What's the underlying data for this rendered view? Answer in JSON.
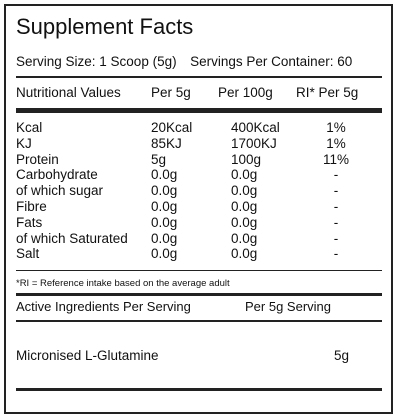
{
  "title": "Supplement Facts",
  "serving_size": "Serving Size: 1 Scoop (5g)",
  "servings_per_container": "Servings Per Container: 60",
  "nutrition_header": {
    "label": "Nutritional Values",
    "per_5g": "Per 5g",
    "per_100g": "Per 100g",
    "ri": "RI* Per 5g"
  },
  "nutrition_rows": [
    {
      "name": "Kcal",
      "per_5g": "20Kcal",
      "per_100g": "400Kcal",
      "ri": "1%"
    },
    {
      "name": "KJ",
      "per_5g": "85KJ",
      "per_100g": "1700KJ",
      "ri": "1%"
    },
    {
      "name": "Protein",
      "per_5g": "5g",
      "per_100g": "100g",
      "ri": "11%"
    },
    {
      "name": "Carbohydrate",
      "per_5g": "0.0g",
      "per_100g": "0.0g",
      "ri": "-"
    },
    {
      "name": "of which sugar",
      "per_5g": "0.0g",
      "per_100g": "0.0g",
      "ri": "-"
    },
    {
      "name": "Fibre",
      "per_5g": "0.0g",
      "per_100g": "0.0g",
      "ri": "-"
    },
    {
      "name": "Fats",
      "per_5g": "0.0g",
      "per_100g": "0.0g",
      "ri": "-"
    },
    {
      "name": "of which Saturated",
      "per_5g": "0.0g",
      "per_100g": "0.0g",
      "ri": "-"
    },
    {
      "name": "Salt",
      "per_5g": "0.0g",
      "per_100g": "0.0g",
      "ri": "-"
    }
  ],
  "ri_note": "*RI = Reference intake based on the average adult",
  "active_header": {
    "label": "Active Ingredients Per Serving",
    "per_serving": "Per 5g Serving"
  },
  "active_rows": [
    {
      "name": "Micronised L-Glutamine",
      "amount": "5g"
    }
  ]
}
